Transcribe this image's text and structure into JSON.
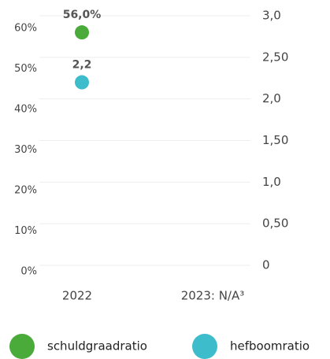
{
  "chart_data": {
    "type": "scatter",
    "categories": [
      "2022",
      "2023: N/A³"
    ],
    "series": [
      {
        "name": "schuldgraadratio",
        "color": "#4aaa3a",
        "values": [
          56.0,
          null
        ],
        "value_labels": [
          "56,0%",
          null
        ]
      },
      {
        "name": "hefboomratio",
        "color": "#3dbccc",
        "axis": "y2",
        "values": [
          2.2,
          null
        ],
        "value_labels": [
          "2,2",
          null
        ]
      }
    ],
    "ylim": [
      0,
      60
    ],
    "yticks": [
      {
        "value": 0,
        "label": "0%"
      },
      {
        "value": 10,
        "label": "10%"
      },
      {
        "value": 20,
        "label": "20%"
      },
      {
        "value": 30,
        "label": "30%"
      },
      {
        "value": 40,
        "label": "40%"
      },
      {
        "value": 50,
        "label": "50%"
      },
      {
        "value": 60,
        "label": "60%"
      }
    ],
    "y2lim": [
      0,
      3
    ],
    "y2ticks": [
      0,
      {
        "value": 0.5,
        "label": "0,50"
      },
      {
        "value": 1,
        "label": "1,0"
      },
      {
        "value": 1.5,
        "label": "1,50"
      },
      {
        "value": 2,
        "label": "2,0"
      },
      {
        "value": 2.5,
        "label": "2,50"
      },
      {
        "value": 3,
        "label": "3,0"
      }
    ],
    "grid": true,
    "legend": "bottom"
  }
}
